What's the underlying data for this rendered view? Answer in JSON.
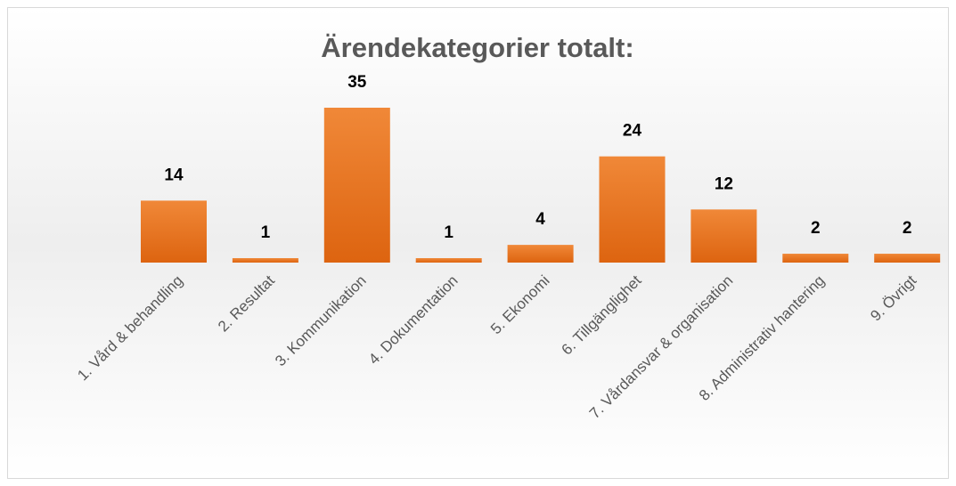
{
  "chart_data": {
    "type": "bar",
    "title": "Ärendekategorier totalt:",
    "categories": [
      "1. Vård & behandling",
      "2. Resultat",
      "3. Kommunikation",
      "4. Dokumentation",
      "5. Ekonomi",
      "6. Tillgänglighet",
      "7. Vårdansvar & organisation",
      "8. Administrativ hantering",
      "9. Övrigt"
    ],
    "values": [
      14,
      1,
      35,
      1,
      4,
      24,
      12,
      2,
      2
    ],
    "color": "#ED7D31"
  }
}
